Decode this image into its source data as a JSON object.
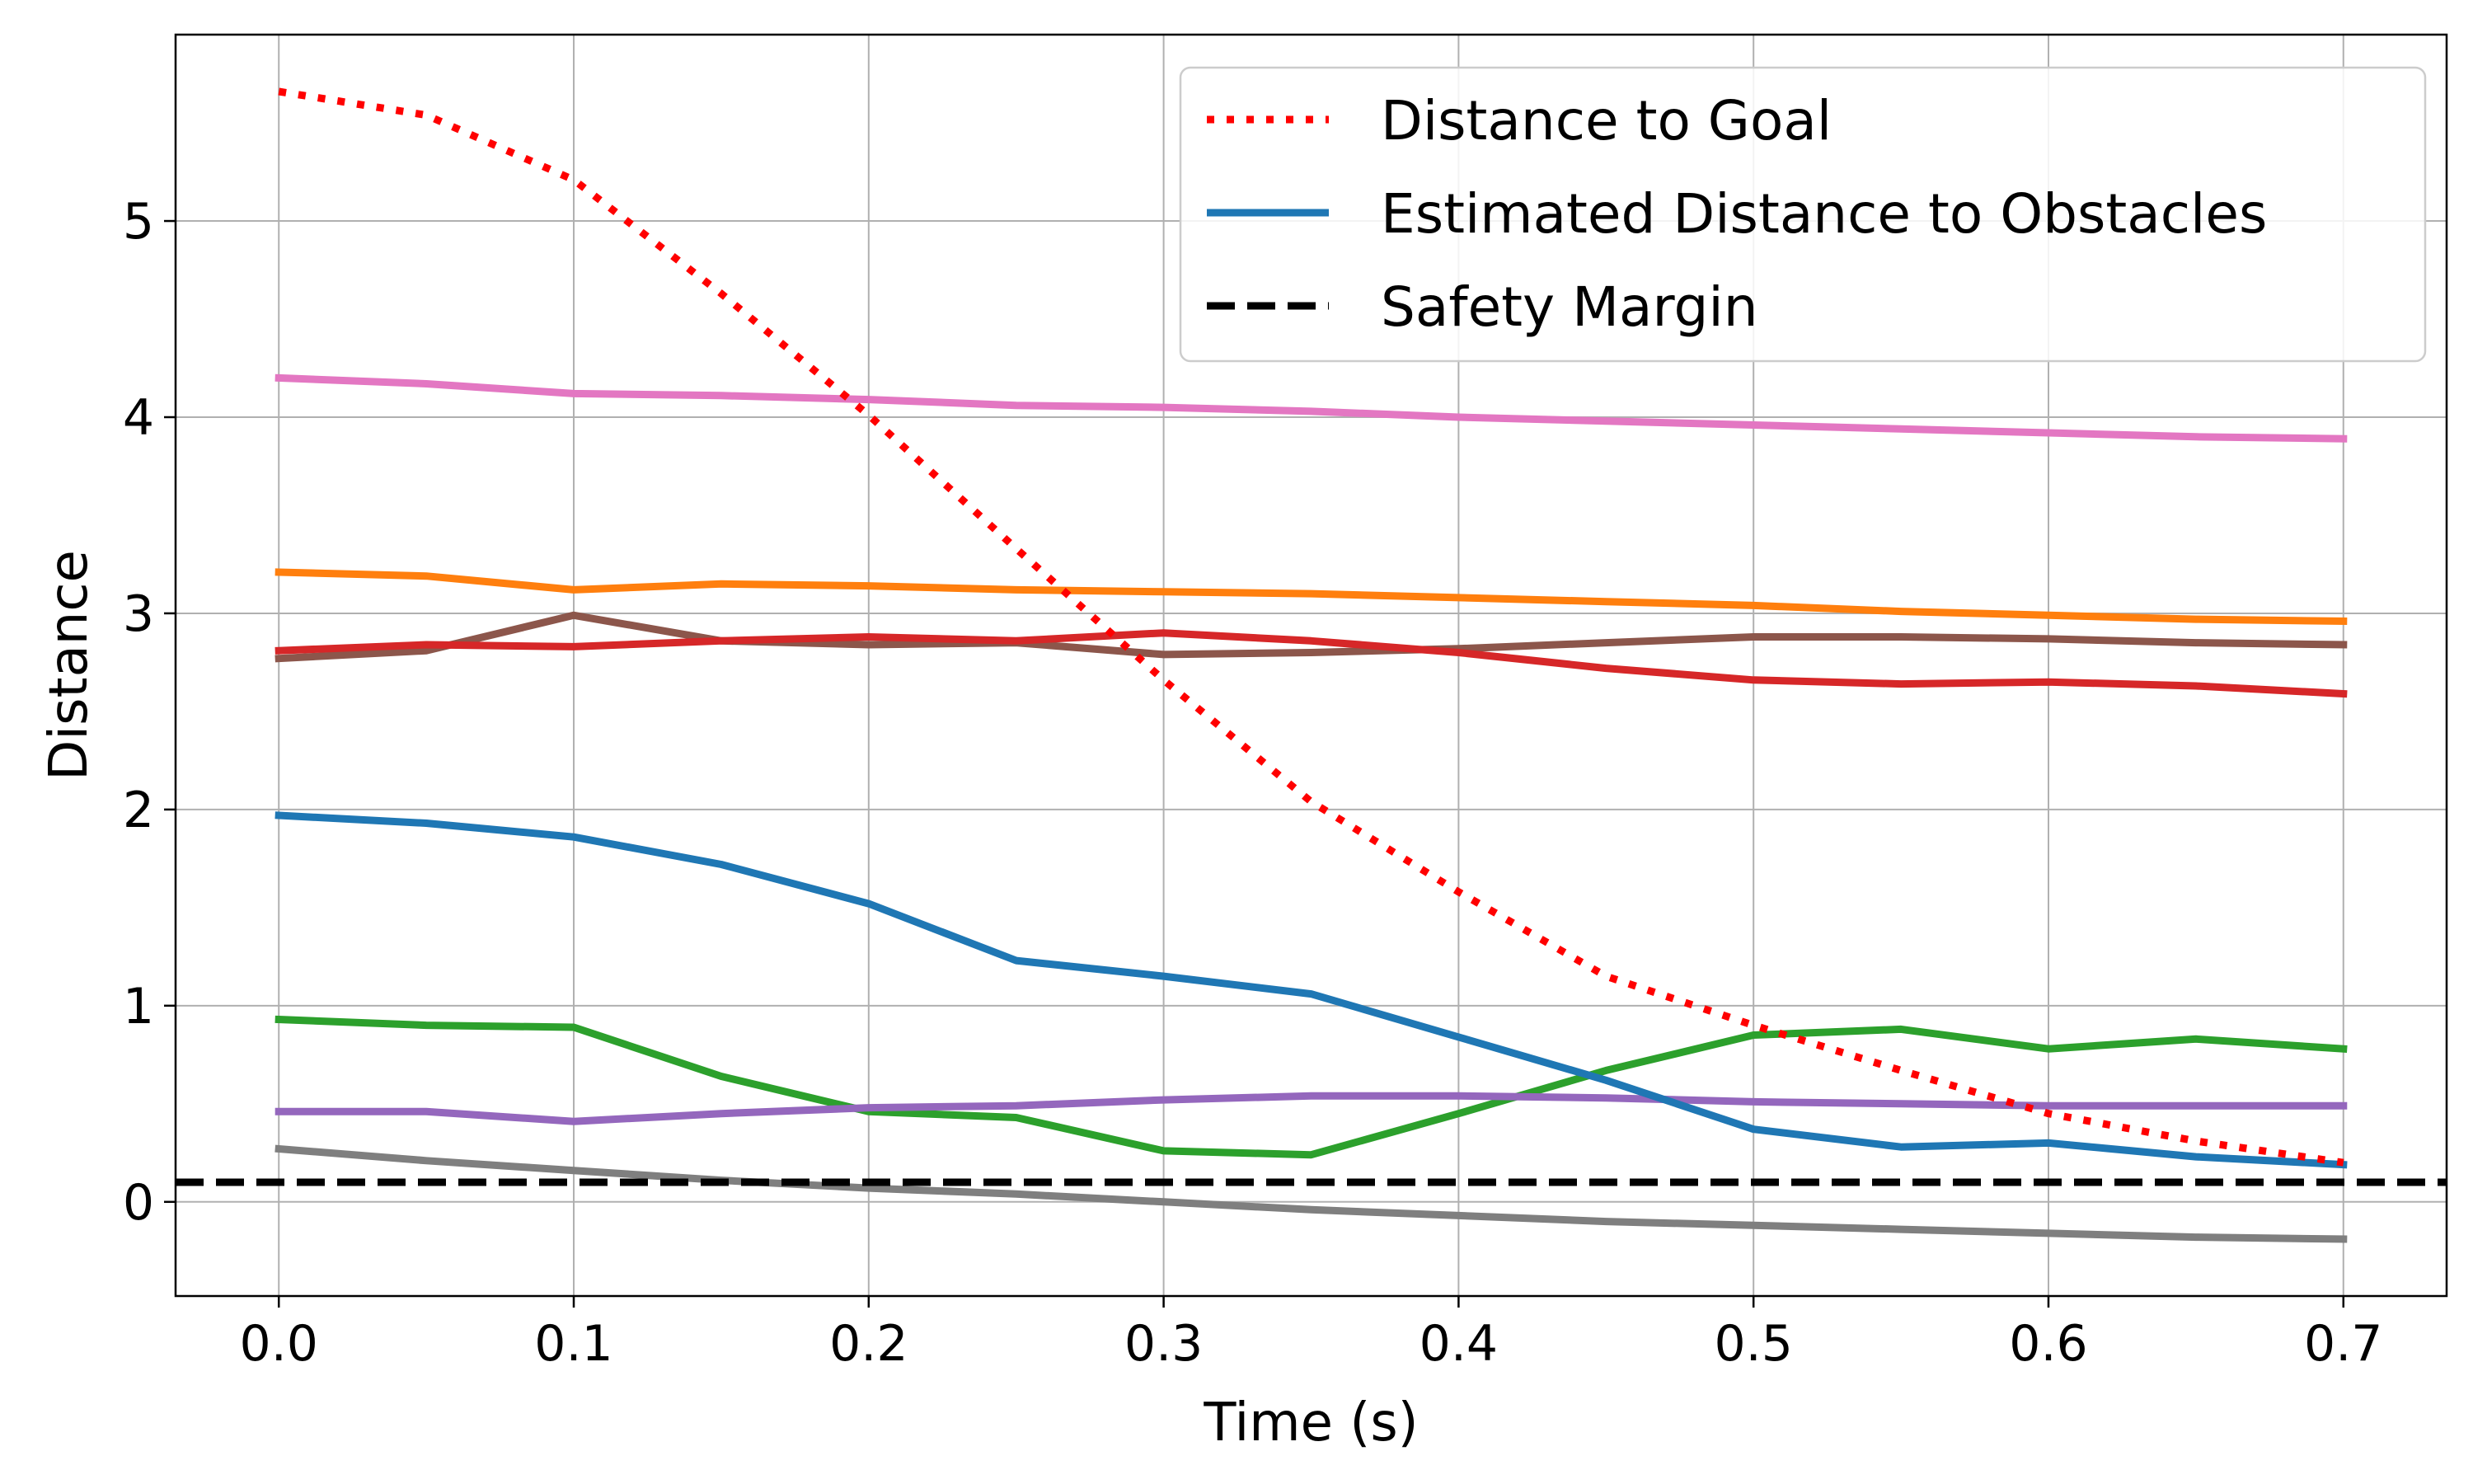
{
  "chart_data": {
    "type": "line",
    "xlabel": "Time (s)",
    "ylabel": "Distance",
    "xlim": [
      -0.035,
      0.735
    ],
    "ylim": [
      -0.48,
      5.95
    ],
    "x_ticks": [
      "0.0",
      "0.1",
      "0.2",
      "0.3",
      "0.4",
      "0.5",
      "0.6",
      "0.7"
    ],
    "x_tick_values": [
      0.0,
      0.1,
      0.2,
      0.3,
      0.4,
      0.5,
      0.6,
      0.7
    ],
    "y_ticks": [
      "0",
      "1",
      "2",
      "3",
      "4",
      "5"
    ],
    "y_tick_values": [
      0,
      1,
      2,
      3,
      4,
      5
    ],
    "grid": true,
    "legend_position": "top-right",
    "x": [
      0.0,
      0.05,
      0.1,
      0.15,
      0.2,
      0.25,
      0.3,
      0.35,
      0.4,
      0.45,
      0.5,
      0.55,
      0.6,
      0.65,
      0.7
    ],
    "series": [
      {
        "name": "Distance to Goal",
        "color": "#ff0000",
        "style": "dotted",
        "in_legend": true,
        "values": [
          5.66,
          5.54,
          5.21,
          4.63,
          4.01,
          3.33,
          2.66,
          2.04,
          1.58,
          1.15,
          0.9,
          0.67,
          0.45,
          0.31,
          0.2
        ]
      },
      {
        "name": "Estimated Distance to Obstacles",
        "color": "#1f77b4",
        "style": "solid",
        "in_legend": true,
        "values": [
          1.97,
          1.93,
          1.86,
          1.72,
          1.52,
          1.23,
          1.15,
          1.06,
          0.84,
          0.62,
          0.37,
          0.28,
          0.3,
          0.23,
          0.19
        ]
      },
      {
        "name": "Safety Margin",
        "color": "#000000",
        "style": "dashed",
        "in_legend": true,
        "horizontal": true,
        "values": [
          0.1,
          0.1,
          0.1,
          0.1,
          0.1,
          0.1,
          0.1,
          0.1,
          0.1,
          0.1,
          0.1,
          0.1,
          0.1,
          0.1,
          0.1
        ]
      },
      {
        "color": "#e377c2",
        "style": "solid",
        "in_legend": false,
        "values": [
          4.2,
          4.17,
          4.12,
          4.11,
          4.09,
          4.06,
          4.05,
          4.03,
          4.0,
          3.98,
          3.96,
          3.94,
          3.92,
          3.9,
          3.89
        ]
      },
      {
        "color": "#ff7f0e",
        "style": "solid",
        "in_legend": false,
        "values": [
          3.21,
          3.19,
          3.12,
          3.15,
          3.14,
          3.12,
          3.11,
          3.1,
          3.08,
          3.06,
          3.04,
          3.01,
          2.99,
          2.97,
          2.96
        ]
      },
      {
        "color": "#8c564b",
        "style": "solid",
        "in_legend": false,
        "values": [
          2.77,
          2.81,
          2.99,
          2.86,
          2.84,
          2.85,
          2.79,
          2.8,
          2.82,
          2.85,
          2.88,
          2.88,
          2.87,
          2.85,
          2.84
        ]
      },
      {
        "color": "#d62728",
        "style": "solid",
        "in_legend": false,
        "values": [
          2.81,
          2.84,
          2.83,
          2.86,
          2.88,
          2.86,
          2.9,
          2.86,
          2.8,
          2.72,
          2.66,
          2.64,
          2.65,
          2.63,
          2.59
        ]
      },
      {
        "color": "#2ca02c",
        "style": "solid",
        "in_legend": false,
        "values": [
          0.93,
          0.9,
          0.89,
          0.64,
          0.46,
          0.43,
          0.26,
          0.24,
          0.45,
          0.67,
          0.85,
          0.88,
          0.78,
          0.83,
          0.78
        ]
      },
      {
        "color": "#9467bd",
        "style": "solid",
        "in_legend": false,
        "values": [
          0.46,
          0.46,
          0.41,
          0.45,
          0.48,
          0.49,
          0.52,
          0.54,
          0.54,
          0.53,
          0.51,
          0.5,
          0.49,
          0.49,
          0.49
        ]
      },
      {
        "color": "#7f7f7f",
        "style": "solid",
        "in_legend": false,
        "values": [
          0.27,
          0.21,
          0.16,
          0.11,
          0.07,
          0.04,
          0.0,
          -0.04,
          -0.07,
          -0.1,
          -0.12,
          -0.14,
          -0.16,
          -0.18,
          -0.19
        ]
      }
    ]
  }
}
